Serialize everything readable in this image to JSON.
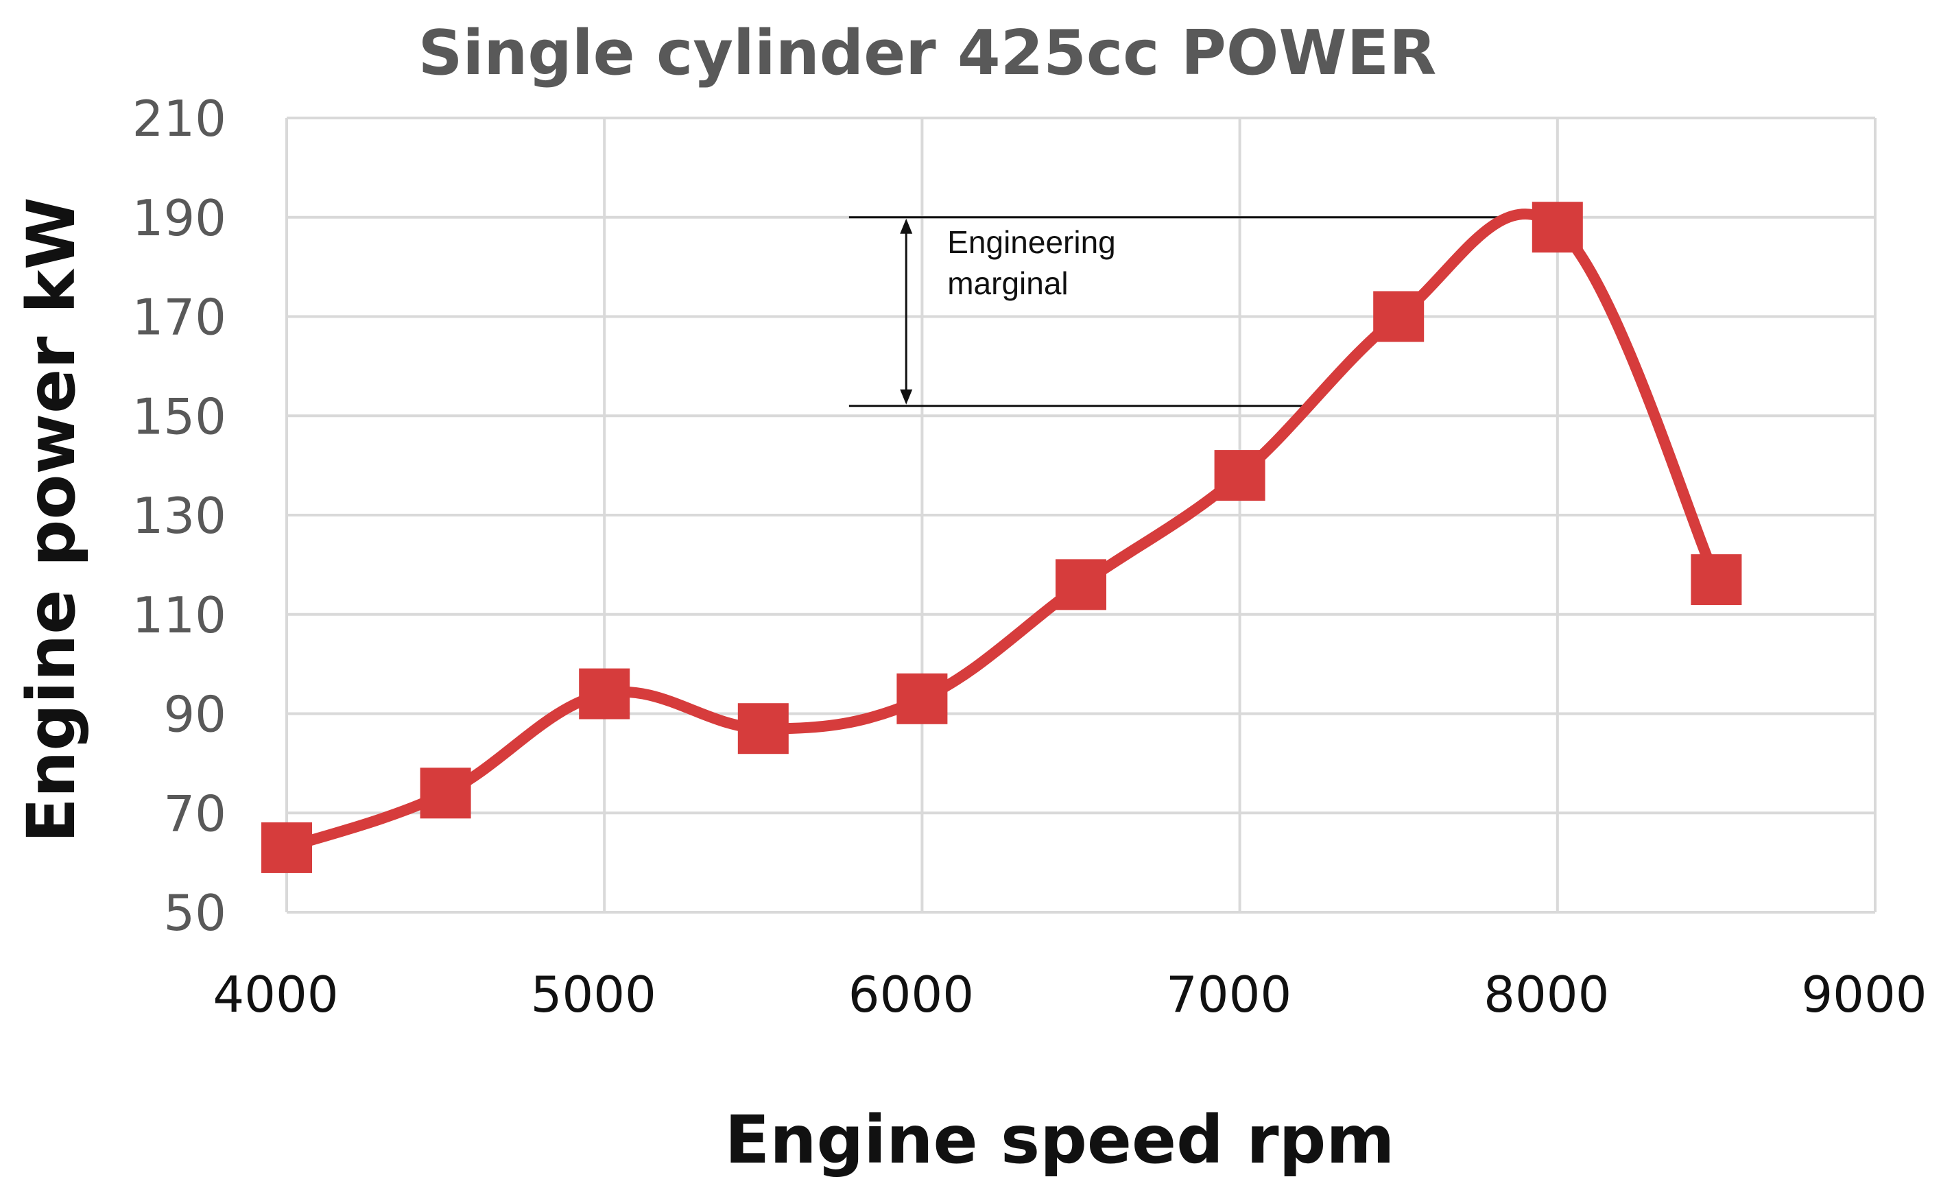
{
  "chart_data": {
    "type": "line",
    "title": "Single cylinder 425cc POWER",
    "xlabel": "Engine speed rpm",
    "ylabel": "Engine power kW",
    "xlim": [
      4000,
      9000
    ],
    "ylim": [
      50,
      210
    ],
    "x_ticks": [
      "4000",
      "5000",
      "6000",
      "7000",
      "8000",
      "9000"
    ],
    "y_ticks": [
      "210",
      "190",
      "170",
      "150",
      "130",
      "110",
      "90",
      "70",
      "50"
    ],
    "grid": true,
    "smooth": true,
    "series": [
      {
        "color": "#d63c3c",
        "marker": "square",
        "x": [
          4000,
          4500,
          5000,
          5500,
          6000,
          6500,
          7000,
          7500,
          8000,
          8500
        ],
        "y": [
          63,
          74,
          94,
          87,
          93,
          116,
          138,
          170,
          188,
          117
        ]
      }
    ],
    "annotation": {
      "lines": [
        "Engineering",
        "marginal"
      ],
      "top_value": 190,
      "bottom_value": 152,
      "x_from": 5770,
      "x_to": 8000,
      "x_to_bottom": 7200,
      "arrow_x": 5950
    }
  },
  "colors": {
    "series": "#d63c3c",
    "grid": "#d9d9d9",
    "title": "#595959",
    "tick_y": "#595959",
    "tick_x": "#111111"
  }
}
